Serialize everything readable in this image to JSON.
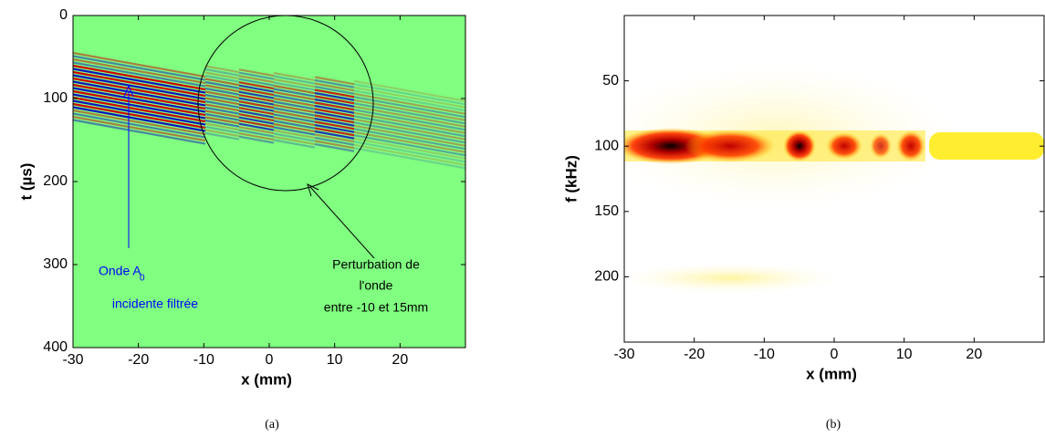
{
  "chart_data": [
    {
      "type": "heatmap",
      "xlabel": "x (mm)",
      "ylabel": "t (µs)",
      "xlim": [
        -30,
        30
      ],
      "ylim": [
        0,
        400
      ],
      "y_reversed": true,
      "xticks": [
        -30,
        -20,
        -10,
        0,
        10,
        20
      ],
      "yticks": [
        0,
        100,
        200,
        300,
        400
      ],
      "annotations": {
        "left": [
          "Onde A",
          "0",
          "incidente filtrée"
        ],
        "right": [
          "Perturbation de",
          "l'onde",
          "entre -10 et 15mm"
        ]
      },
      "caption": "(a)"
    },
    {
      "type": "heatmap",
      "xlabel": "x (mm)",
      "ylabel": "f (kHz)",
      "xlim": [
        -30,
        30
      ],
      "ylim": [
        0,
        250
      ],
      "y_reversed": true,
      "xticks": [
        -30,
        -20,
        -10,
        0,
        10,
        20
      ],
      "yticks": [
        50,
        100,
        150,
        200
      ],
      "caption": "(b)"
    }
  ]
}
